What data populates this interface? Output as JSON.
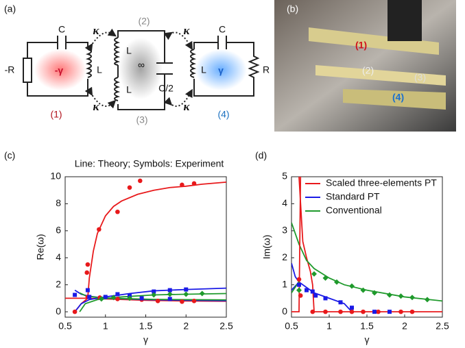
{
  "panel_a": {
    "label": "(a)",
    "left": {
      "cap": "C",
      "resistor": "-R",
      "gain": "-γ",
      "ind": "L",
      "index": "(1)"
    },
    "coupling": {
      "top_left": "κ",
      "bottom_left": "κ",
      "top_right": "κ",
      "bottom_right": "κ"
    },
    "middle": {
      "index_top": "(2)",
      "ind_top": "L",
      "inf": "∞",
      "ind_bottom": "L",
      "cap": "C/2",
      "index_bottom": "(3)"
    },
    "right": {
      "cap": "C",
      "ind": "L",
      "loss": "γ",
      "resistor": "R",
      "index": "(4)"
    }
  },
  "panel_b": {
    "label": "(b)",
    "tags": [
      "(1)",
      "(2)",
      "(3)",
      "(4)"
    ]
  },
  "chart_data": [
    {
      "type": "line",
      "panel": "(c)",
      "subtitle": "Line: Theory; Symbols: Experiment",
      "xlabel": "γ",
      "ylabel": "Re(ω)",
      "xlim": [
        0.5,
        2.5
      ],
      "xticks": [
        0.5,
        1,
        1.5,
        2,
        2.5
      ],
      "ylim": [
        -0.4,
        10
      ],
      "yticks": [
        0,
        2,
        4,
        6,
        8,
        10
      ],
      "series": [
        {
          "color": "#e8191b",
          "style": "line",
          "x": [
            0.78,
            0.8,
            0.85,
            0.9,
            1,
            1.1,
            1.2,
            1.4,
            1.6,
            1.8,
            2,
            2.2,
            2.5
          ],
          "values": [
            1,
            2.5,
            4.5,
            5.8,
            7.1,
            7.8,
            8.2,
            8.7,
            9.0,
            9.2,
            9.3,
            9.45,
            9.6
          ]
        },
        {
          "color": "#e8191b",
          "style": "line",
          "x": [
            0.5,
            0.78,
            1,
            1.5,
            2,
            2.5
          ],
          "values": [
            1,
            1,
            0.95,
            0.85,
            0.8,
            0.78
          ]
        },
        {
          "color": "#e8191b",
          "style": "line",
          "x": [
            0.62,
            0.7,
            0.78
          ],
          "values": [
            0,
            0.6,
            1
          ]
        },
        {
          "color": "#1a1ae6",
          "style": "line",
          "x": [
            0.62,
            0.7,
            0.8,
            1,
            1.3,
            1.6,
            2,
            2.5
          ],
          "values": [
            0,
            0.6,
            0.9,
            1.1,
            1.35,
            1.55,
            1.65,
            1.75
          ]
        },
        {
          "color": "#1a1ae6",
          "style": "line",
          "x": [
            0.62,
            0.7,
            0.8,
            1,
            1.5,
            2,
            2.5
          ],
          "values": [
            1.6,
            1.3,
            1.15,
            1.0,
            0.9,
            0.85,
            0.82
          ]
        },
        {
          "color": "#1f9a2c",
          "style": "line",
          "x": [
            0.68,
            0.75,
            0.9,
            1.2,
            1.6,
            2,
            2.5
          ],
          "values": [
            0,
            0.6,
            0.9,
            1.1,
            1.25,
            1.3,
            1.35
          ]
        },
        {
          "color": "#1f9a2c",
          "style": "line",
          "x": [
            0.68,
            0.75,
            0.9,
            1.2,
            1.6,
            2,
            2.5
          ],
          "values": [
            1.4,
            1.2,
            1.05,
            0.98,
            0.92,
            0.9,
            0.88
          ]
        },
        {
          "color": "#e8191b",
          "style": "dot",
          "x": [
            0.62,
            0.77,
            0.78,
            0.92,
            1.15,
            1.3,
            1.43,
            1.95,
            2.1,
            0.78,
            0.93,
            1.15,
            1.3,
            1.45,
            1.65,
            1.95,
            2.1
          ],
          "values": [
            0,
            2.9,
            3.5,
            6.1,
            7.4,
            9.2,
            9.7,
            9.4,
            9.5,
            1.1,
            1.05,
            0.95,
            1.0,
            0.9,
            0.8,
            0.75,
            0.8
          ]
        },
        {
          "color": "#1a1ae6",
          "style": "square",
          "x": [
            0.62,
            0.78,
            0.8,
            1.0,
            1.15,
            1.3,
            1.6,
            1.8,
            2.0,
            1.45,
            1.8
          ],
          "values": [
            1.25,
            1.6,
            1.1,
            1.1,
            1.3,
            1.2,
            1.5,
            1.6,
            1.65,
            1.0,
            0.95
          ]
        },
        {
          "color": "#1f9a2c",
          "style": "diamond",
          "x": [
            0.95,
            1.1,
            1.3,
            1.6,
            1.8,
            2.0,
            2.2
          ],
          "values": [
            0.95,
            1.05,
            1.0,
            1.25,
            1.3,
            1.3,
            1.35
          ]
        }
      ]
    },
    {
      "type": "line",
      "panel": "(d)",
      "xlabel": "γ",
      "ylabel": "Im(ω)",
      "legend": "upper right",
      "xlim": [
        0.5,
        2.5
      ],
      "xticks": [
        0.5,
        1,
        1.5,
        2,
        2.5
      ],
      "ylim": [
        -0.2,
        5
      ],
      "yticks": [
        0,
        1,
        2,
        3,
        4,
        5
      ],
      "series": [
        {
          "name": "Scaled three-elements PT",
          "color": "#e8191b",
          "style": "line",
          "x": [
            0.6,
            0.65,
            0.7,
            0.75,
            0.78,
            0.8,
            2.5
          ],
          "values": [
            5,
            2.6,
            2.0,
            1.5,
            1.0,
            0,
            0
          ]
        },
        {
          "name": "Standard PT",
          "color": "#1a1ae6",
          "style": "line",
          "x": [
            0.5,
            0.55,
            0.6,
            0.7,
            0.8,
            1,
            1.2,
            1.3
          ],
          "values": [
            1.8,
            1.3,
            1.1,
            0.9,
            0.7,
            0.5,
            0.3,
            0
          ]
        },
        {
          "name": "Conventional",
          "color": "#1f9a2c",
          "style": "line",
          "x": [
            0.5,
            0.6,
            0.7,
            0.8,
            1,
            1.2,
            1.5,
            2,
            2.5
          ],
          "values": [
            3.3,
            2.5,
            1.9,
            1.6,
            1.25,
            1.0,
            0.8,
            0.55,
            0.4
          ]
        },
        {
          "color": "#e8191b",
          "style": "line",
          "x": [
            0.5,
            0.6,
            0.62
          ],
          "values": [
            0,
            0,
            5
          ]
        },
        {
          "color": "#1a1ae6",
          "style": "line",
          "x": [
            0.5,
            0.55,
            0.6
          ],
          "values": [
            0.8,
            0.95,
            1.1
          ]
        },
        {
          "color": "#1f9a2c",
          "style": "line",
          "x": [
            0.5,
            0.56,
            0.62
          ],
          "values": [
            0.7,
            0.95,
            1.2
          ]
        },
        {
          "color": "#e8191b",
          "style": "dot",
          "x": [
            0.6,
            0.62,
            0.78,
            0.95,
            1.15,
            1.3,
            1.45,
            1.65,
            1.95,
            2.1
          ],
          "values": [
            1.2,
            0.6,
            0,
            0,
            0,
            0,
            0,
            0,
            0,
            0
          ]
        },
        {
          "color": "#1a1ae6",
          "style": "square",
          "x": [
            0.6,
            0.7,
            0.78,
            0.82,
            0.95,
            1.15,
            1.3,
            1.6,
            1.8
          ],
          "values": [
            1.0,
            0.8,
            0.75,
            0.6,
            0.5,
            0.35,
            0.15,
            0,
            0
          ]
        },
        {
          "color": "#1f9a2c",
          "style": "diamond",
          "x": [
            0.6,
            0.8,
            0.95,
            1.1,
            1.3,
            1.45,
            1.6,
            1.8,
            1.95,
            2.1,
            2.3
          ],
          "values": [
            0.8,
            1.4,
            1.25,
            1.1,
            0.95,
            0.8,
            0.7,
            0.62,
            0.58,
            0.53,
            0.45
          ]
        }
      ]
    }
  ]
}
